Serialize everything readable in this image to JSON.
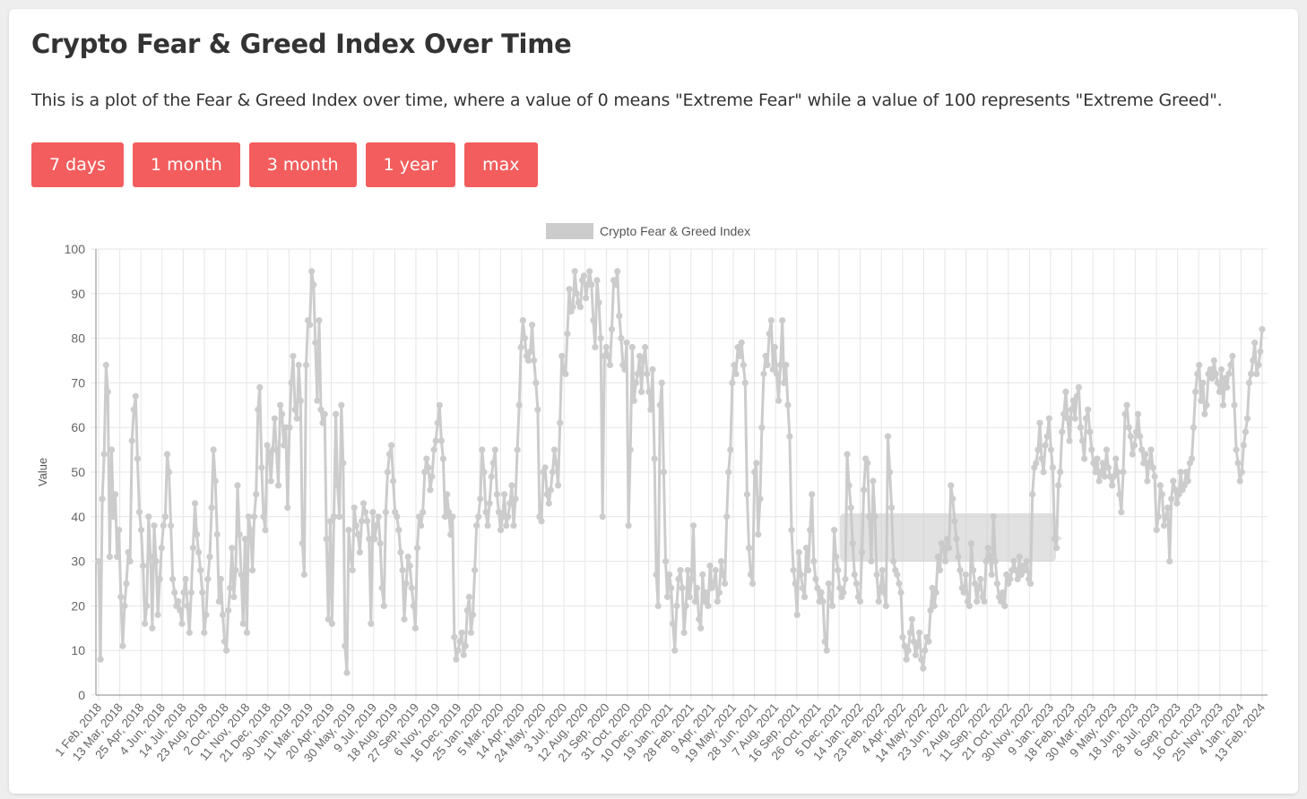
{
  "page": {
    "title": "Crypto Fear & Greed Index Over Time",
    "description": "This is a plot of the Fear & Greed Index over time, where a value of 0 means \"Extreme Fear\" while a value of 100 represents \"Extreme Greed\"."
  },
  "range_buttons": [
    {
      "label": "7 days"
    },
    {
      "label": "1 month"
    },
    {
      "label": "3 month"
    },
    {
      "label": "1 year"
    },
    {
      "label": "max"
    }
  ],
  "colors": {
    "button": "#f35d5d",
    "series": "#cccccc",
    "grid": "#e6e6e6",
    "axis": "#888888"
  },
  "chart_data": {
    "type": "line",
    "title": "",
    "xlabel": "",
    "ylabel": "Value",
    "ylim": [
      0,
      100
    ],
    "y_ticks": [
      0,
      10,
      20,
      30,
      40,
      50,
      60,
      70,
      80,
      90,
      100
    ],
    "legend": "top",
    "grid": true,
    "x_tick_labels": [
      "1 Feb, 2018",
      "13 Mar, 2018",
      "25 Apr, 2018",
      "4 Jun, 2018",
      "14 Jul, 2018",
      "23 Aug, 2018",
      "2 Oct, 2018",
      "11 Nov, 2018",
      "21 Dec, 2018",
      "30 Jan, 2019",
      "11 Mar, 2019",
      "20 Apr, 2019",
      "30 May, 2019",
      "9 Jul, 2019",
      "18 Aug, 2019",
      "27 Sep, 2019",
      "6 Nov, 2019",
      "16 Dec, 2019",
      "25 Jan, 2020",
      "5 Mar, 2020",
      "14 Apr, 2020",
      "24 May, 2020",
      "3 Jul, 2020",
      "12 Aug, 2020",
      "21 Sep, 2020",
      "31 Oct, 2020",
      "10 Dec, 2020",
      "19 Jan, 2021",
      "28 Feb, 2021",
      "9 Apr, 2021",
      "19 May, 2021",
      "28 Jun, 2021",
      "7 Aug, 2021",
      "16 Sep, 2021",
      "26 Oct, 2021",
      "5 Dec, 2021",
      "14 Jan, 2022",
      "23 Feb, 2022",
      "4 Apr, 2022",
      "14 May, 2022",
      "23 Jun, 2022",
      "2 Aug, 2022",
      "11 Sep, 2022",
      "21 Oct, 2022",
      "30 Nov, 2022",
      "9 Jan, 2023",
      "18 Feb, 2023",
      "30 Mar, 2023",
      "9 May, 2023",
      "18 Jun, 2023",
      "28 Jul, 2023",
      "6 Sep, 2023",
      "16 Oct, 2023",
      "25 Nov, 2023",
      "4 Jan, 2024",
      "13 Feb, 2024"
    ],
    "series": [
      {
        "name": "Crypto Fear & Greed Index",
        "values": [
          30,
          8,
          44,
          54,
          74,
          68,
          31,
          55,
          40,
          45,
          31,
          37,
          22,
          11,
          20,
          25,
          32,
          30,
          57,
          64,
          67,
          53,
          41,
          37,
          29,
          16,
          20,
          40,
          31,
          15,
          38,
          30,
          18,
          26,
          33,
          38,
          40,
          54,
          50,
          38,
          26,
          23,
          20,
          21,
          19,
          16,
          23,
          26,
          20,
          14,
          23,
          33,
          43,
          36,
          32,
          28,
          23,
          14,
          18,
          26,
          31,
          42,
          55,
          48,
          36,
          21,
          26,
          18,
          12,
          10,
          19,
          24,
          33,
          22,
          28,
          47,
          36,
          27,
          16,
          35,
          14,
          40,
          37,
          28,
          40,
          45,
          64,
          69,
          51,
          40,
          37,
          56,
          54,
          48,
          55,
          62,
          55,
          47,
          65,
          63,
          56,
          60,
          42,
          60,
          70,
          76,
          64,
          62,
          74,
          66,
          34,
          27,
          74,
          84,
          83,
          95,
          92,
          79,
          66,
          84,
          64,
          61,
          63,
          35,
          17,
          39,
          16,
          40,
          63,
          47,
          40,
          65,
          52,
          11,
          5,
          37,
          31,
          28,
          42,
          38,
          36,
          32,
          39,
          43,
          41,
          39,
          35,
          16,
          41,
          35,
          38,
          40,
          34,
          24,
          20,
          41,
          50,
          54,
          56,
          48,
          41,
          40,
          37,
          32,
          28,
          17,
          25,
          31,
          29,
          24,
          20,
          15,
          33,
          40,
          38,
          41,
          50,
          53,
          51,
          46,
          49,
          55,
          57,
          61,
          65,
          57,
          53,
          40,
          45,
          41,
          36,
          40,
          13,
          8,
          10,
          12,
          14,
          9,
          11,
          19,
          22,
          14,
          18,
          28,
          38,
          40,
          44,
          55,
          50,
          41,
          38,
          43,
          49,
          52,
          55,
          45,
          41,
          37,
          40,
          45,
          38,
          40,
          43,
          47,
          38,
          44,
          55,
          65,
          78,
          84,
          80,
          76,
          75,
          77,
          83,
          75,
          70,
          64,
          40,
          39,
          50,
          51,
          45,
          43,
          46,
          50,
          55,
          52,
          47,
          61,
          76,
          73,
          72,
          81,
          91,
          86,
          87,
          95,
          90,
          88,
          87,
          93,
          94,
          89,
          92,
          95,
          92,
          84,
          78,
          93,
          88,
          80,
          40,
          76,
          78,
          76,
          74,
          82,
          93,
          92,
          95,
          85,
          80,
          74,
          73,
          79,
          38,
          55,
          78,
          66,
          70,
          72,
          76,
          68,
          75,
          78,
          72,
          68,
          64,
          73,
          53,
          27,
          20,
          65,
          70,
          50,
          30,
          22,
          27,
          24,
          16,
          10,
          20,
          26,
          28,
          24,
          14,
          20,
          28,
          22,
          26,
          38,
          21,
          24,
          17,
          15,
          27,
          21,
          23,
          20,
          29,
          24,
          25,
          28,
          21,
          23,
          30,
          27,
          25,
          40,
          50,
          55,
          70,
          74,
          72,
          78,
          76,
          79,
          74,
          70,
          45,
          33,
          27,
          25,
          50,
          52,
          36,
          44,
          60,
          72,
          76,
          74,
          81,
          84,
          73,
          78,
          72,
          66,
          74,
          84,
          70,
          74,
          65,
          58,
          37,
          28,
          25,
          18,
          32,
          27,
          24,
          22,
          33,
          28,
          37,
          45,
          30,
          26,
          24,
          21,
          23,
          21,
          12,
          10,
          25,
          22,
          20,
          37,
          31,
          28,
          24,
          22,
          23,
          26,
          54,
          47,
          42,
          34,
          27,
          25,
          22,
          21,
          32,
          46,
          53,
          52,
          40,
          30,
          48,
          40,
          27,
          21,
          24,
          28,
          23,
          20,
          58,
          50,
          42,
          30,
          28,
          27,
          25,
          23,
          13,
          11,
          8,
          10,
          14,
          17,
          12,
          9,
          11,
          14,
          8,
          6,
          10,
          13,
          12,
          19,
          24,
          20,
          23,
          31,
          28,
          34,
          33,
          30,
          35,
          33,
          47,
          44,
          39,
          35,
          31,
          28,
          24,
          23,
          27,
          21,
          20,
          34,
          28,
          25,
          21,
          24,
          26,
          22,
          21,
          30,
          33,
          31,
          27,
          40,
          30,
          25,
          22,
          21,
          23,
          20,
          27,
          25,
          26,
          28,
          30,
          28,
          26,
          31,
          27,
          29,
          28,
          30,
          26,
          25,
          45,
          51,
          52,
          55,
          61,
          53,
          50,
          56,
          58,
          62,
          55,
          51,
          35,
          33,
          47,
          50,
          59,
          63,
          68,
          62,
          57,
          64,
          66,
          62,
          67,
          69,
          60,
          57,
          53,
          62,
          64,
          59,
          55,
          52,
          50,
          53,
          48,
          50,
          52,
          49,
          55,
          51,
          49,
          47,
          49,
          53,
          50,
          45,
          41,
          50,
          63,
          65,
          60,
          58,
          54,
          56,
          59,
          63,
          58,
          55,
          52,
          54,
          48,
          52,
          55,
          51,
          49,
          37,
          40,
          47,
          45,
          38,
          40,
          42,
          30,
          44,
          48,
          46,
          43,
          45,
          50,
          46,
          47,
          50,
          48,
          52,
          53,
          60,
          68,
          72,
          74,
          66,
          70,
          63,
          65,
          72,
          73,
          71,
          75,
          72,
          70,
          68,
          73,
          65,
          71,
          69,
          72,
          74,
          76,
          65,
          55,
          52,
          48,
          50,
          56,
          59,
          62,
          70,
          72,
          75,
          79,
          72,
          74,
          77,
          82
        ]
      }
    ]
  }
}
